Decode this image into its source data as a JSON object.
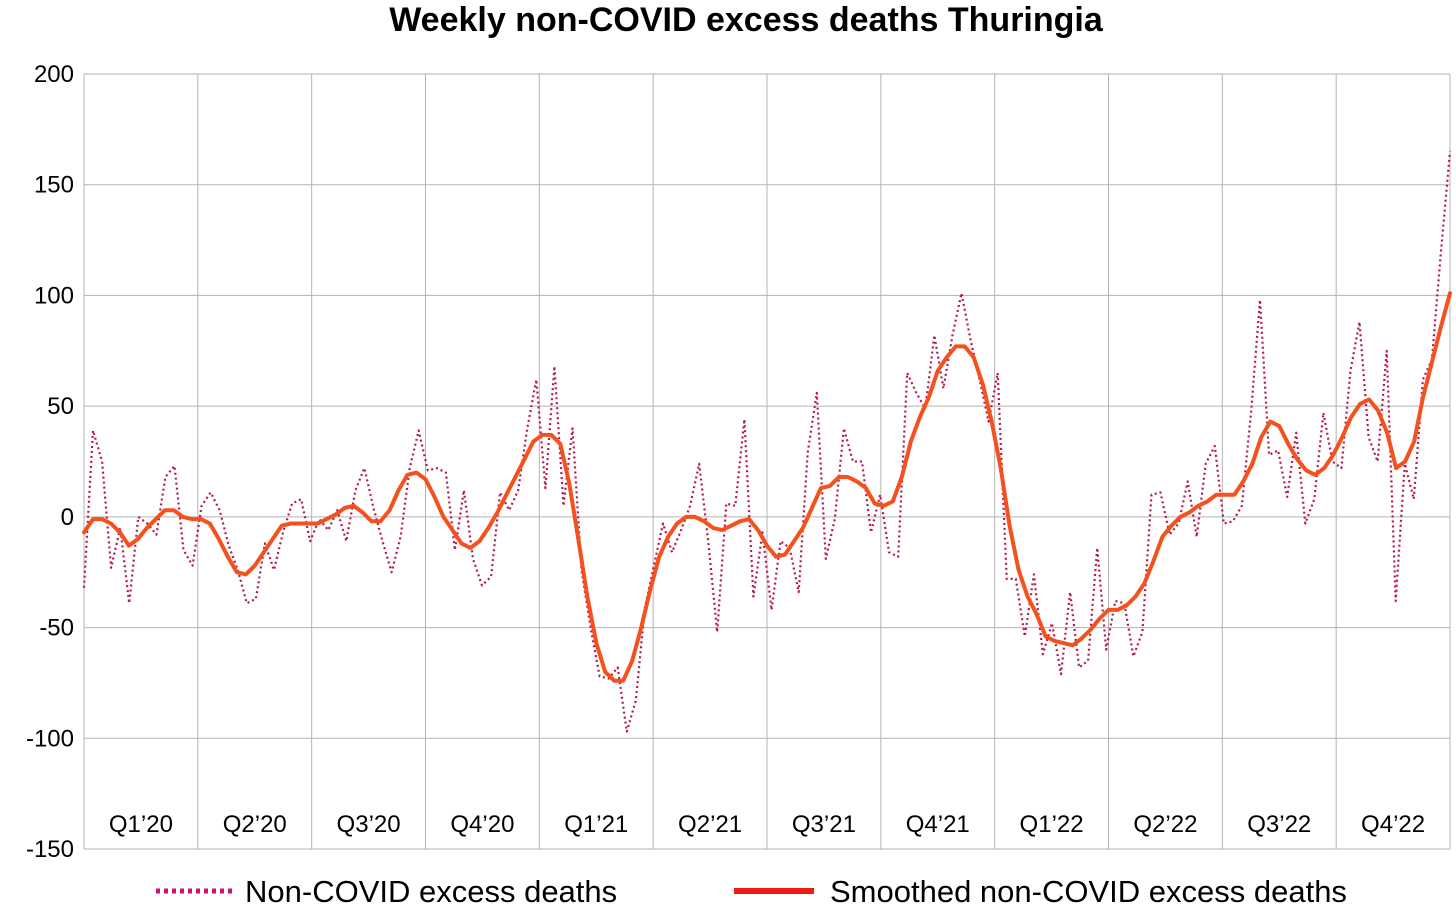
{
  "chart_data": {
    "type": "line",
    "title": "Weekly non-COVID excess deaths Thuringia",
    "xlabel": "",
    "ylabel": "",
    "ylim": [
      -150,
      200
    ],
    "yticks": [
      200,
      150,
      100,
      50,
      0,
      -50,
      -100,
      -150
    ],
    "ytick_labels": [
      "200",
      "150",
      "100",
      "50",
      "0",
      "-50",
      "-100",
      "-150"
    ],
    "xlim": [
      0,
      156
    ],
    "quarter_labels": [
      "Q1’20",
      "Q2’20",
      "Q3’20",
      "Q4’20",
      "Q1’21",
      "Q2’21",
      "Q3’21",
      "Q4’21",
      "Q1’22",
      "Q2’22",
      "Q3’22",
      "Q4’22"
    ],
    "grid": true,
    "legend_position": "bottom",
    "series": [
      {
        "name": "Non-COVID excess deaths",
        "style": "dotted",
        "color": "#b5174f",
        "values": [
          -32,
          39,
          25,
          -23,
          -5,
          -39,
          0,
          -3,
          -8,
          18,
          23,
          -15,
          -22,
          5,
          11,
          3,
          -13,
          -24,
          -39,
          -37,
          -12,
          -24,
          -7,
          6,
          8,
          -11,
          -1,
          -6,
          3,
          -11,
          12,
          22,
          4,
          -11,
          -25,
          -9,
          22,
          39,
          21,
          22,
          20,
          -15,
          12,
          -19,
          -31,
          -27,
          11,
          3,
          12,
          40,
          62,
          13,
          68,
          5,
          40,
          -24,
          -50,
          -72,
          -73,
          -68,
          -97,
          -83,
          -41,
          -22,
          -3,
          -16,
          -6,
          5,
          24,
          -11,
          -52,
          6,
          5,
          44,
          -36,
          -7,
          -42,
          -11,
          -14,
          -34,
          29,
          56,
          -19,
          -1,
          40,
          25,
          25,
          -7,
          10,
          -16,
          -18,
          65,
          56,
          49,
          82,
          58,
          82,
          101,
          80,
          62,
          43,
          65,
          -28,
          -28,
          -54,
          -26,
          -62,
          -48,
          -71,
          -34,
          -68,
          -65,
          -14,
          -60,
          -38,
          -39,
          -63,
          -52,
          10,
          11,
          -8,
          -3,
          16,
          -9,
          24,
          32,
          -3,
          -2,
          5,
          47,
          98,
          28,
          30,
          9,
          38,
          -3,
          8,
          47,
          25,
          22,
          66,
          88,
          36,
          25,
          75,
          -38,
          24,
          8,
          62,
          71,
          120,
          165
        ]
      },
      {
        "name": "Smoothed non-COVID excess deaths",
        "style": "solid",
        "color": "#f4511e",
        "values": [
          -7,
          -1,
          -1,
          -3,
          -7,
          -13,
          -10,
          -5,
          -1,
          3,
          3,
          0,
          -1,
          -1,
          -3,
          -10,
          -18,
          -25,
          -26,
          -22,
          -16,
          -10,
          -4,
          -3,
          -3,
          -3,
          -3,
          -1,
          1,
          4,
          5,
          2,
          -2,
          -2,
          3,
          12,
          19,
          20,
          17,
          9,
          0,
          -6,
          -12,
          -14,
          -11,
          -5,
          2,
          10,
          18,
          26,
          34,
          37,
          37,
          33,
          15,
          -10,
          -36,
          -57,
          -70,
          -74,
          -74,
          -65,
          -50,
          -33,
          -18,
          -9,
          -3,
          0,
          0,
          -2,
          -5,
          -6,
          -4,
          -2,
          -1,
          -6,
          -13,
          -18,
          -17,
          -11,
          -5,
          4,
          13,
          14,
          18,
          18,
          16,
          13,
          6,
          5,
          7,
          18,
          34,
          45,
          54,
          66,
          72,
          77,
          77,
          72,
          60,
          43,
          22,
          -4,
          -24,
          -36,
          -44,
          -54,
          -56,
          -57,
          -58,
          -55,
          -51,
          -46,
          -42,
          -42,
          -40,
          -36,
          -30,
          -20,
          -9,
          -4,
          0,
          2,
          5,
          7,
          10,
          10,
          10,
          16,
          24,
          36,
          43,
          41,
          33,
          26,
          21,
          19,
          22,
          28,
          36,
          45,
          51,
          53,
          48,
          38,
          22,
          25,
          34,
          54,
          70,
          86,
          101
        ]
      }
    ]
  }
}
